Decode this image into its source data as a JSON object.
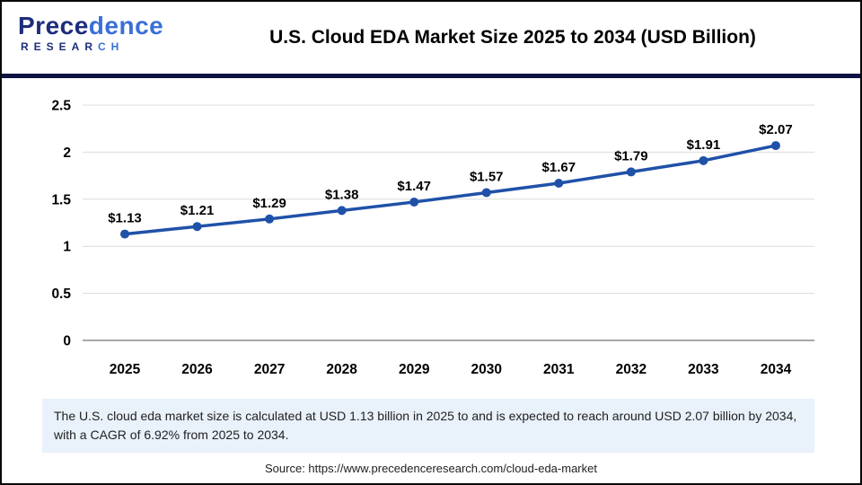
{
  "header": {
    "logo": {
      "brand_dark": "Prece",
      "brand_light": "dence",
      "research_dark": "RESEAR",
      "research_light": "CH"
    },
    "title": "U.S. Cloud EDA Market Size 2025 to 2034 (USD Billion)"
  },
  "colors": {
    "line": "#1f51a8",
    "marker": "#1f51a8",
    "grid": "#dcdcdc",
    "zero_line": "#a8a8a8",
    "divider_navy": "#0d1342",
    "caption_bg": "#e9f1fb",
    "logo_navy": "#1e2d7d",
    "logo_blue": "#3a6fd8"
  },
  "chart_data": {
    "type": "line",
    "title": "U.S. Cloud EDA Market Size 2025 to 2034 (USD Billion)",
    "categories": [
      "2025",
      "2026",
      "2027",
      "2028",
      "2029",
      "2030",
      "2031",
      "2032",
      "2033",
      "2034"
    ],
    "values": [
      1.13,
      1.21,
      1.29,
      1.38,
      1.47,
      1.57,
      1.67,
      1.79,
      1.91,
      2.07
    ],
    "point_labels": [
      "$1.13",
      "$1.21",
      "$1.29",
      "$1.38",
      "$1.47",
      "$1.57",
      "$1.67",
      "$1.79",
      "$1.91",
      "$2.07"
    ],
    "xlabel": "",
    "ylabel": "",
    "ylim": [
      0,
      2.5
    ],
    "yticks": [
      0,
      0.5,
      1,
      1.5,
      2,
      2.5
    ],
    "ytick_labels": [
      "0",
      "0.5",
      "1",
      "1.5",
      "2",
      "2.5"
    ],
    "grid": true,
    "legend": "none"
  },
  "caption": {
    "text": "The U.S. cloud eda market size is calculated at USD 1.13 billion in 2025 to and is expected to reach around USD 2.07 billion by 2034, with a CAGR of 6.92% from 2025 to 2034."
  },
  "source": {
    "text": "Source: https://www.precedenceresearch.com/cloud-eda-market"
  }
}
